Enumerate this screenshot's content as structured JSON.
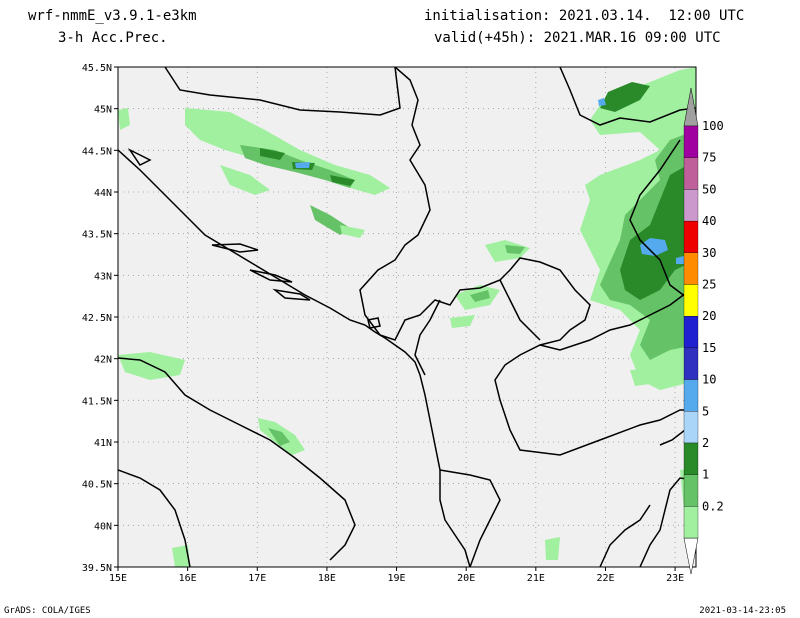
{
  "header": {
    "model": "wrf-nmmE_v3.9.1-e3km",
    "field": "3-h Acc.Prec.",
    "init": "initialisation: 2021.03.14.  12:00 UTC",
    "valid": "valid(+45h): 2021.MAR.16 09:00 UTC"
  },
  "map": {
    "lon_range": [
      15,
      23.3
    ],
    "lat_range": [
      39.5,
      45.5
    ],
    "lon_ticks": [
      "15E",
      "16E",
      "17E",
      "18E",
      "19E",
      "20E",
      "21E",
      "22E",
      "23E"
    ],
    "lat_ticks": [
      "45.5N",
      "45N",
      "44.5N",
      "44N",
      "43.5N",
      "43N",
      "42.5N",
      "42N",
      "41.5N",
      "41N",
      "40.5N",
      "40N",
      "39.5N"
    ],
    "grid": true,
    "background_color": "#f0f0f0"
  },
  "legend": {
    "labels": [
      "100",
      "75",
      "50",
      "40",
      "30",
      "25",
      "20",
      "15",
      "10",
      "5",
      "2",
      "1",
      "0.2"
    ],
    "colors": [
      "#a0a0a0",
      "#a000a0",
      "#c0609a",
      "#cc99cc",
      "#ee0000",
      "#ff8c00",
      "#ffff00",
      "#2020d0",
      "#3030c0",
      "#55aaee",
      "#aad4f8",
      "#2a8a2a",
      "#66c266",
      "#a0f0a0"
    ]
  },
  "footer": {
    "left": "GrADS: COLA/IGES",
    "right": "2021-03-14-23:05"
  }
}
